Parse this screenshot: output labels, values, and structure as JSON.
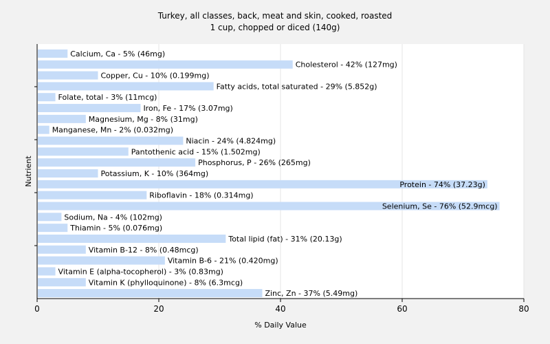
{
  "chart_data": {
    "type": "bar",
    "orientation": "horizontal",
    "title": "Turkey, all classes, back, meat and skin, cooked, roasted",
    "subtitle": "1 cup, chopped or diced (140g)",
    "xlabel": "% Daily Value",
    "ylabel": "Nutrient",
    "xlim": [
      0,
      80
    ],
    "xticks": [
      0,
      20,
      40,
      60,
      80
    ],
    "grid": "vertical",
    "bar_color": "#c6dcf8",
    "categories": [
      "Calcium, Ca - 5% (46mg)",
      "Cholesterol - 42% (127mg)",
      "Copper, Cu - 10% (0.199mg)",
      "Fatty acids, total saturated - 29% (5.852g)",
      "Folate, total - 3% (11mcg)",
      "Iron, Fe - 17% (3.07mg)",
      "Magnesium, Mg - 8% (31mg)",
      "Manganese, Mn - 2% (0.032mg)",
      "Niacin - 24% (4.824mg)",
      "Pantothenic acid - 15% (1.502mg)",
      "Phosphorus, P - 26% (265mg)",
      "Potassium, K - 10% (364mg)",
      "Protein - 74% (37.23g)",
      "Riboflavin - 18% (0.314mg)",
      "Selenium, Se - 76% (52.9mcg)",
      "Sodium, Na - 4% (102mg)",
      "Thiamin - 5% (0.076mg)",
      "Total lipid (fat) - 31% (20.13g)",
      "Vitamin B-12 - 8% (0.48mcg)",
      "Vitamin B-6 - 21% (0.420mg)",
      "Vitamin E (alpha-tocopherol) - 3% (0.83mg)",
      "Vitamin K (phylloquinone) - 8% (6.3mcg)",
      "Zinc, Zn - 37% (5.49mg)"
    ],
    "values": [
      5,
      42,
      10,
      29,
      3,
      17,
      8,
      2,
      24,
      15,
      26,
      10,
      74,
      18,
      76,
      4,
      5,
      31,
      8,
      21,
      3,
      8,
      37
    ]
  }
}
